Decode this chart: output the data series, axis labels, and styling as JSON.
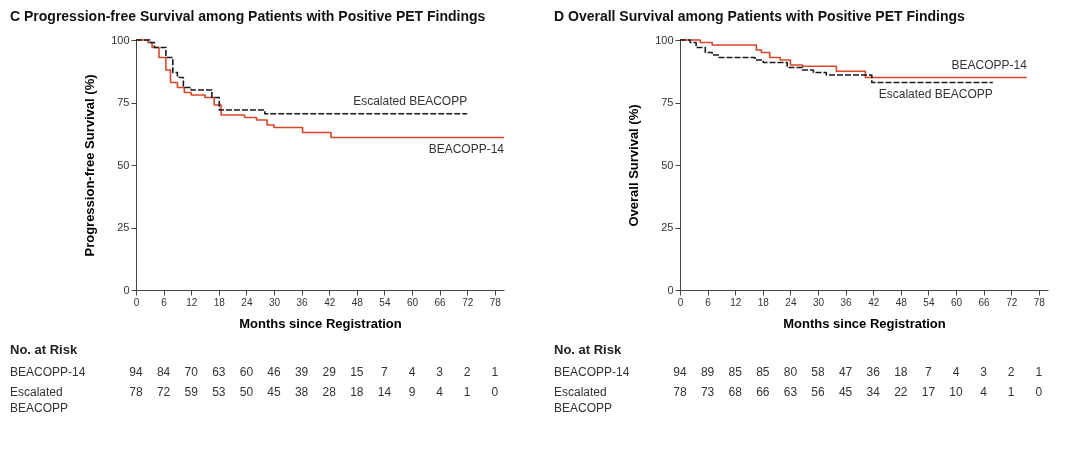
{
  "chart_data": [
    {
      "type": "step",
      "title": "C Progression-free Survival among Patients with Positive PET Findings",
      "xlabel": "Months since Registration",
      "ylabel": "Progression-free Survival (%)",
      "xlim": [
        0,
        80
      ],
      "xticks": [
        0,
        6,
        12,
        18,
        24,
        30,
        36,
        42,
        48,
        54,
        60,
        66,
        72,
        78
      ],
      "ylim": [
        0,
        100
      ],
      "yticks": [
        0,
        25,
        50,
        75,
        100
      ],
      "grid": false,
      "legend": false,
      "series": [
        {
          "name": "BEACOPP-14",
          "color": "#d9472b",
          "line_style": "solid",
          "x": [
            0,
            2.6,
            3.5,
            5,
            6.5,
            7.5,
            9,
            10.5,
            12,
            15,
            17,
            18.5,
            23.6,
            26.2,
            28.5,
            30,
            36.2,
            42.4,
            80
          ],
          "values": [
            100,
            99,
            97,
            93,
            88,
            83,
            81,
            79,
            78,
            77,
            74,
            70,
            69,
            68,
            66,
            65,
            63,
            61,
            61
          ]
        },
        {
          "name": "Escalated BEACOPP",
          "color": "#1a1a1a",
          "line_style": "dashed",
          "x": [
            0,
            3,
            4,
            6.5,
            8,
            9,
            10.3,
            12,
            16.5,
            18.1,
            28,
            72
          ],
          "values": [
            100,
            99,
            97,
            93,
            87,
            85,
            81,
            80,
            77,
            72,
            70.5,
            70.5
          ]
        }
      ],
      "annotations": [
        "No. at Risk",
        "BEACOPP-14",
        "94 84 70 63 60 46 39 29 15 7 4 3 2 1",
        "Escalated BEACOPP",
        "78 72 59 53 50 45 38 28 18 14 9 4 1 0"
      ]
    },
    {
      "type": "step",
      "title": "D Overall Survival among Patients with Positive PET Findings",
      "xlabel": "Months since Registration",
      "ylabel": "Overall Survival (%)",
      "xlim": [
        0,
        80
      ],
      "xticks": [
        0,
        6,
        12,
        18,
        24,
        30,
        36,
        42,
        48,
        54,
        60,
        66,
        72,
        78
      ],
      "ylim": [
        0,
        100
      ],
      "yticks": [
        0,
        25,
        50,
        75,
        100
      ],
      "grid": false,
      "legend": false,
      "series": [
        {
          "name": "BEACOPP-14",
          "color": "#d9472b",
          "line_style": "solid",
          "x": [
            0,
            4.4,
            7,
            16.6,
            17.7,
            19.5,
            21.8,
            24,
            26.6,
            34,
            40.3,
            75.4
          ],
          "values": [
            100,
            99,
            98,
            96,
            95,
            93,
            92,
            90,
            89.5,
            87.5,
            85,
            85
          ]
        },
        {
          "name": "Escalated BEACOPP",
          "color": "#1a1a1a",
          "line_style": "dashed",
          "x": [
            0,
            2.2,
            3.5,
            5.5,
            7,
            8.5,
            16.3,
            18.1,
            23.3,
            26.6,
            29,
            31.8,
            41.7,
            68
          ],
          "values": [
            100,
            99,
            97,
            95,
            94,
            93,
            92,
            91,
            89,
            88,
            87,
            86,
            83,
            83
          ]
        }
      ],
      "annotations": [
        "No. at Risk",
        "BEACOPP-14",
        "94 89 85 85 80 58 47 36 18 7 4 3 2 1",
        "Escalated BEACOPP",
        "78 73 68 66 63 56 45 34 22 17 10 4 1 0"
      ]
    }
  ]
}
